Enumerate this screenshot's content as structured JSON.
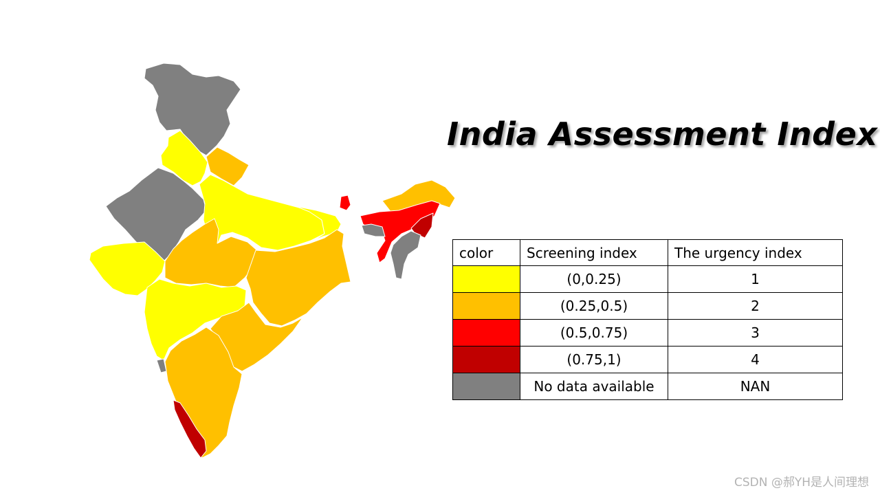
{
  "title": "India Assessment Index",
  "legend": {
    "headers": [
      "color",
      "Screening index",
      "The urgency index"
    ],
    "rows": [
      {
        "color": "#ffff00",
        "range": "(0,0.25)",
        "urgency": "1"
      },
      {
        "color": "#ffc000",
        "range": "(0.25,0.5)",
        "urgency": "2"
      },
      {
        "color": "#ff0000",
        "range": "(0.5,0.75)",
        "urgency": "3"
      },
      {
        "color": "#c00000",
        "range": "(0.75,1)",
        "urgency": "4"
      },
      {
        "color": "#808080",
        "range": "No data available",
        "urgency": "NAN"
      }
    ]
  },
  "map": {
    "regions": [
      {
        "name": "jammu-kashmir",
        "category": "NAN"
      },
      {
        "name": "punjab-haryana",
        "category": "1"
      },
      {
        "name": "uttarakhand",
        "category": "2"
      },
      {
        "name": "rajasthan",
        "category": "NAN"
      },
      {
        "name": "uttar-pradesh",
        "category": "1"
      },
      {
        "name": "bihar",
        "category": "1"
      },
      {
        "name": "sikkim",
        "category": "3"
      },
      {
        "name": "arunachal-pradesh",
        "category": "2"
      },
      {
        "name": "assam-meghalaya",
        "category": "3"
      },
      {
        "name": "nagaland-manipur",
        "category": "4"
      },
      {
        "name": "mizoram-tripura",
        "category": "NAN"
      },
      {
        "name": "gujarat",
        "category": "1"
      },
      {
        "name": "madhya-pradesh",
        "category": "2"
      },
      {
        "name": "jharkhand-bengal-odisha",
        "category": "2"
      },
      {
        "name": "maharashtra",
        "category": "1"
      },
      {
        "name": "telangana-andhra",
        "category": "2"
      },
      {
        "name": "karnataka-tamilnadu",
        "category": "2"
      },
      {
        "name": "goa",
        "category": "NAN"
      },
      {
        "name": "kerala",
        "category": "4"
      }
    ]
  },
  "watermark": "CSDN @郝YH是人间理想"
}
